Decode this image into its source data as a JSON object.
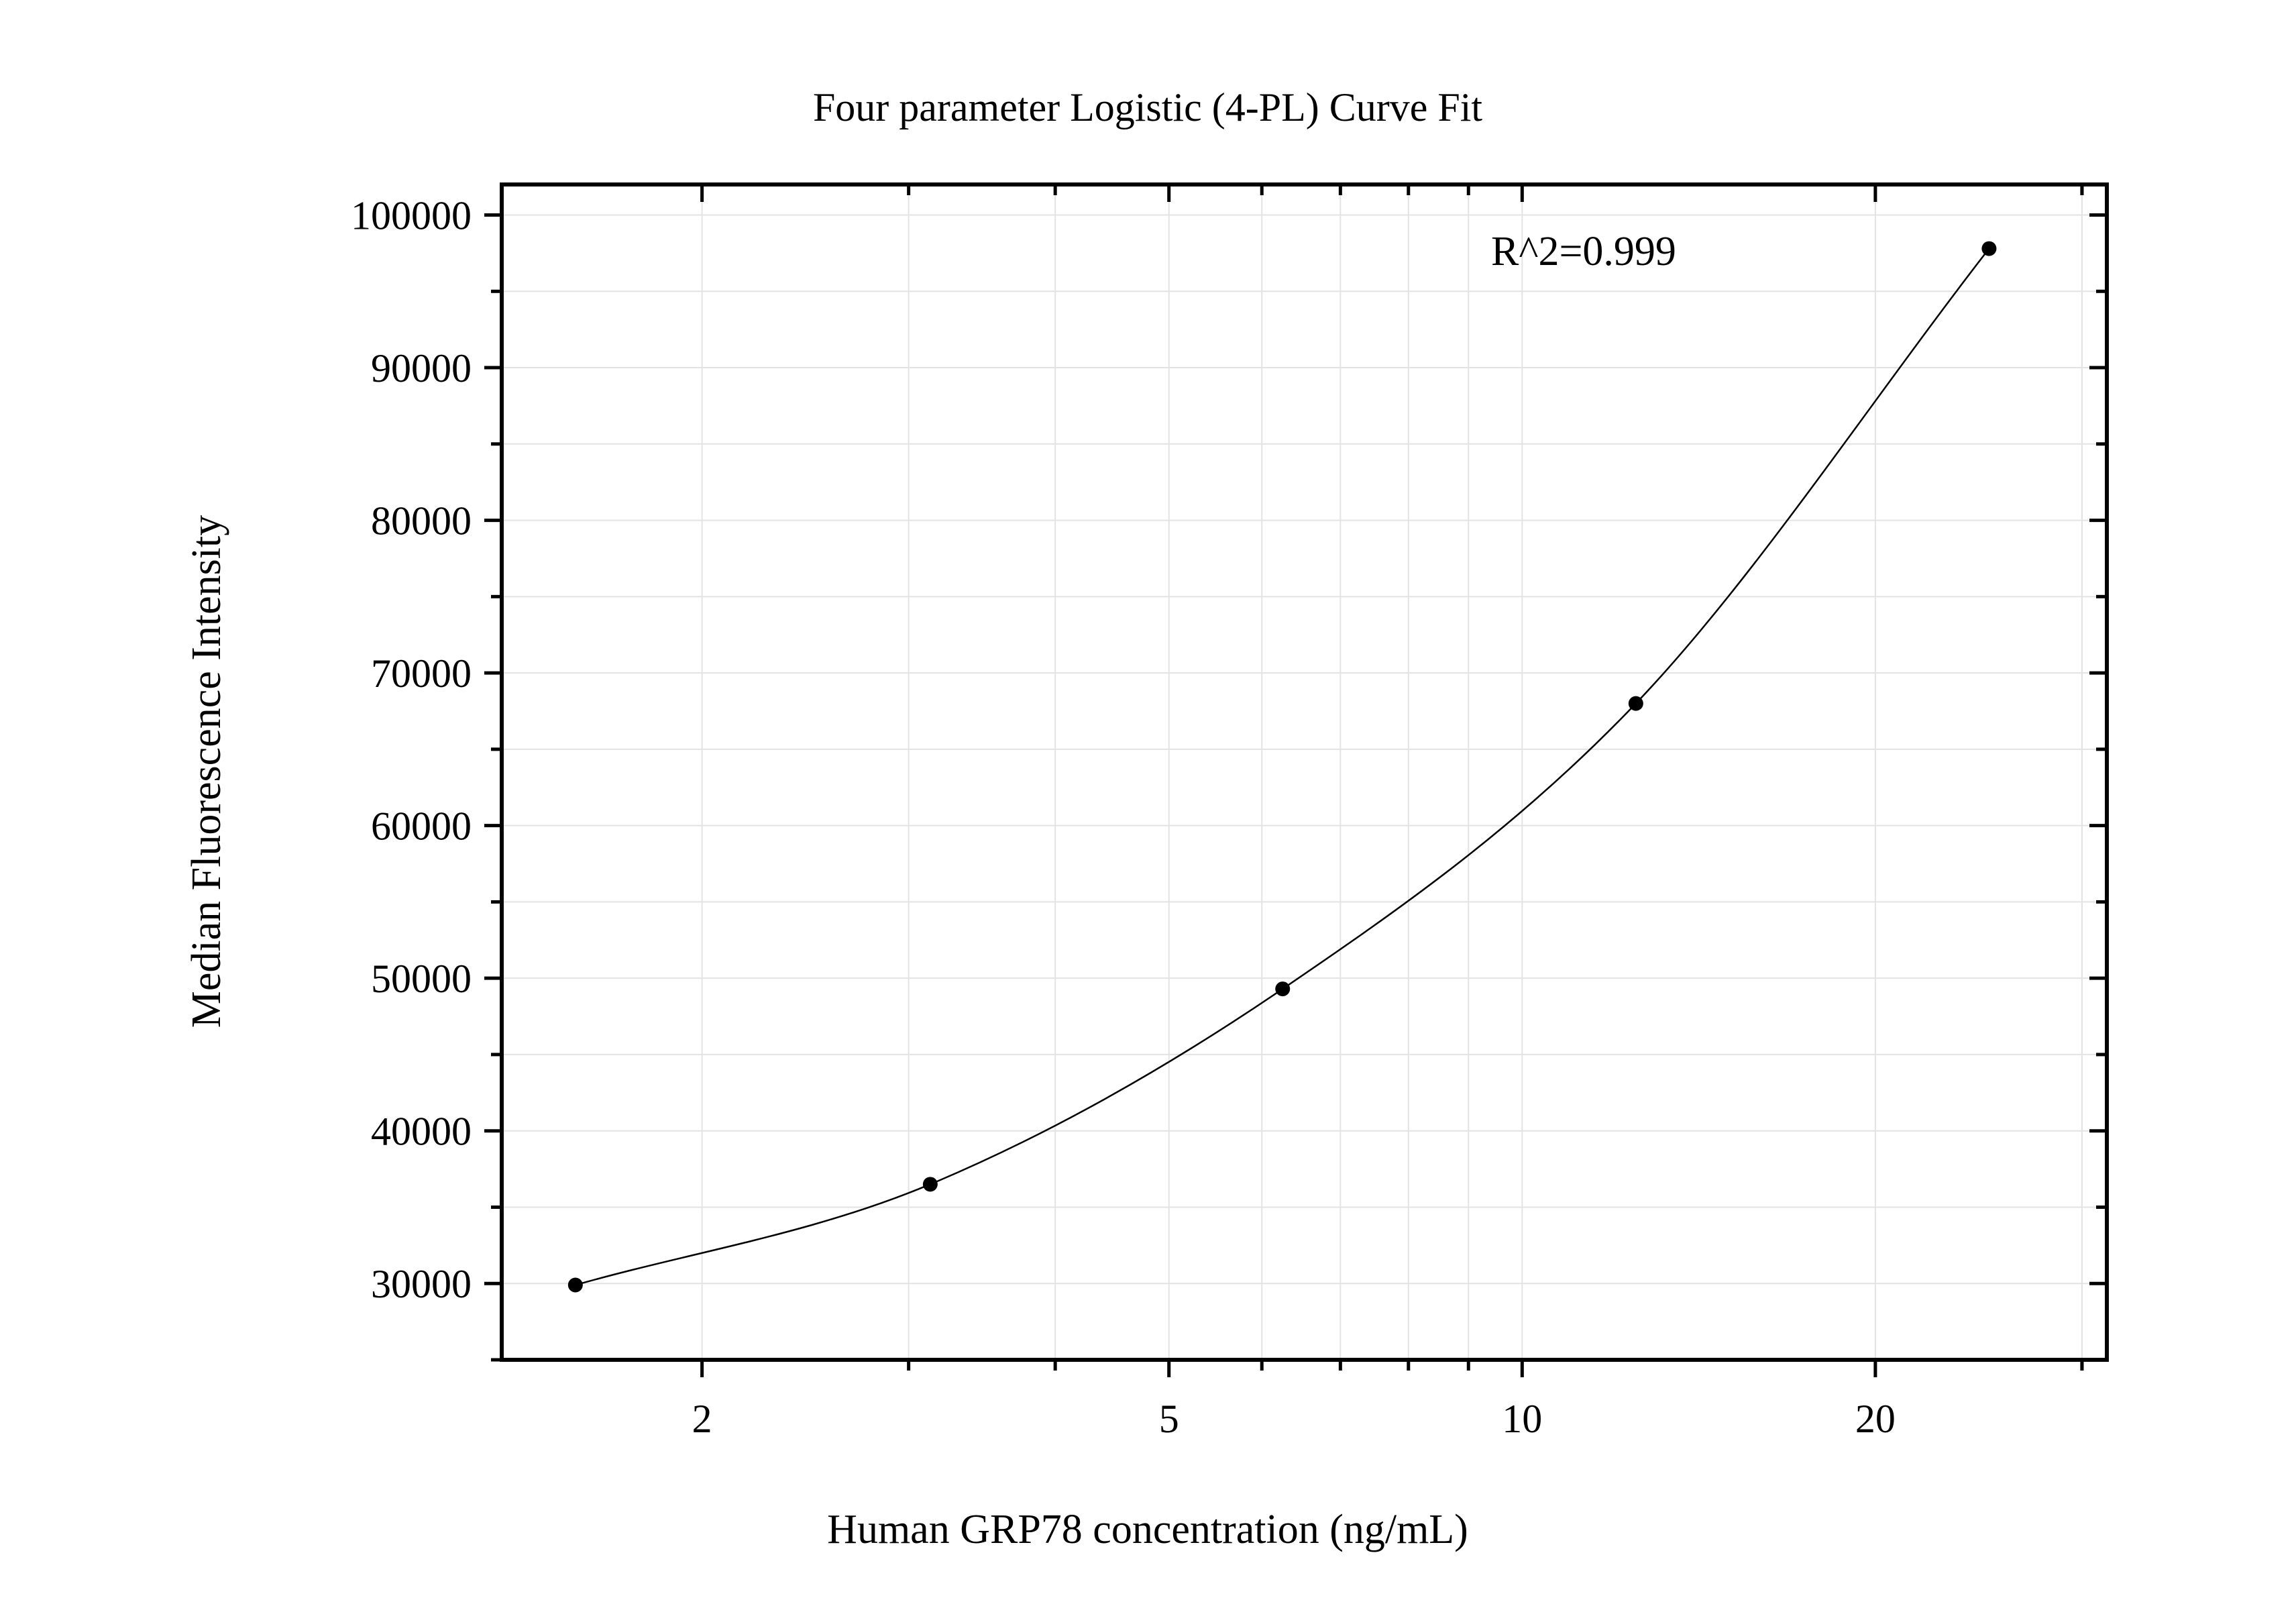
{
  "chart_data": {
    "type": "scatter",
    "title": "Four parameter Logistic (4-PL) Curve Fit",
    "xlabel": "Human GRP78 concentration (ng/mL)",
    "ylabel": "Median Fluorescence Intensity",
    "x_scale": "log",
    "xlim": [
      1.35,
      31.5
    ],
    "ylim": [
      25000,
      102000
    ],
    "x_ticks": [
      2,
      5,
      10,
      20
    ],
    "x_tick_labels": [
      "2",
      "5",
      "10",
      "20"
    ],
    "y_ticks": [
      30000,
      40000,
      50000,
      60000,
      70000,
      80000,
      90000,
      100000
    ],
    "y_tick_labels": [
      "30000",
      "40000",
      "50000",
      "60000",
      "70000",
      "80000",
      "90000",
      "100000"
    ],
    "grid": true,
    "annotation": "R^2=0.999",
    "points": {
      "x": [
        1.56,
        3.13,
        6.25,
        12.5,
        25
      ],
      "y": [
        29900,
        36500,
        49300,
        68000,
        97800
      ]
    },
    "fit": {
      "model": "4-PL",
      "r_squared": 0.999
    },
    "colors": {
      "points": "#000000",
      "curve": "#000000",
      "grid": "#e3e3e3",
      "frame": "#000000"
    }
  }
}
